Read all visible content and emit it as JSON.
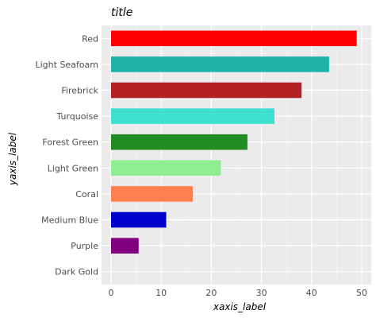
{
  "chart_data": {
    "type": "bar",
    "orientation": "horizontal",
    "title": "title",
    "xlabel": "xaxis_label",
    "ylabel": "yaxis_label",
    "categories": [
      "Dark Gold",
      "Purple",
      "Medium Blue",
      "Coral",
      "Light Green",
      "Forest Green",
      "Turquoise",
      "Firebrick",
      "Light Seafoam",
      "Red"
    ],
    "values": [
      0,
      5.5,
      11,
      16.3,
      21.9,
      27.2,
      32.6,
      38,
      43.5,
      49
    ],
    "colors": [
      "#b8860b",
      "#800080",
      "#0000cd",
      "#ff7f50",
      "#90ee90",
      "#228b22",
      "#40e0d0",
      "#b22222",
      "#20b2aa",
      "#ff0000"
    ],
    "xlim": [
      0,
      50
    ],
    "xticks": [
      0,
      10,
      20,
      30,
      40,
      50
    ],
    "grid": true,
    "background": "#ebebeb"
  }
}
